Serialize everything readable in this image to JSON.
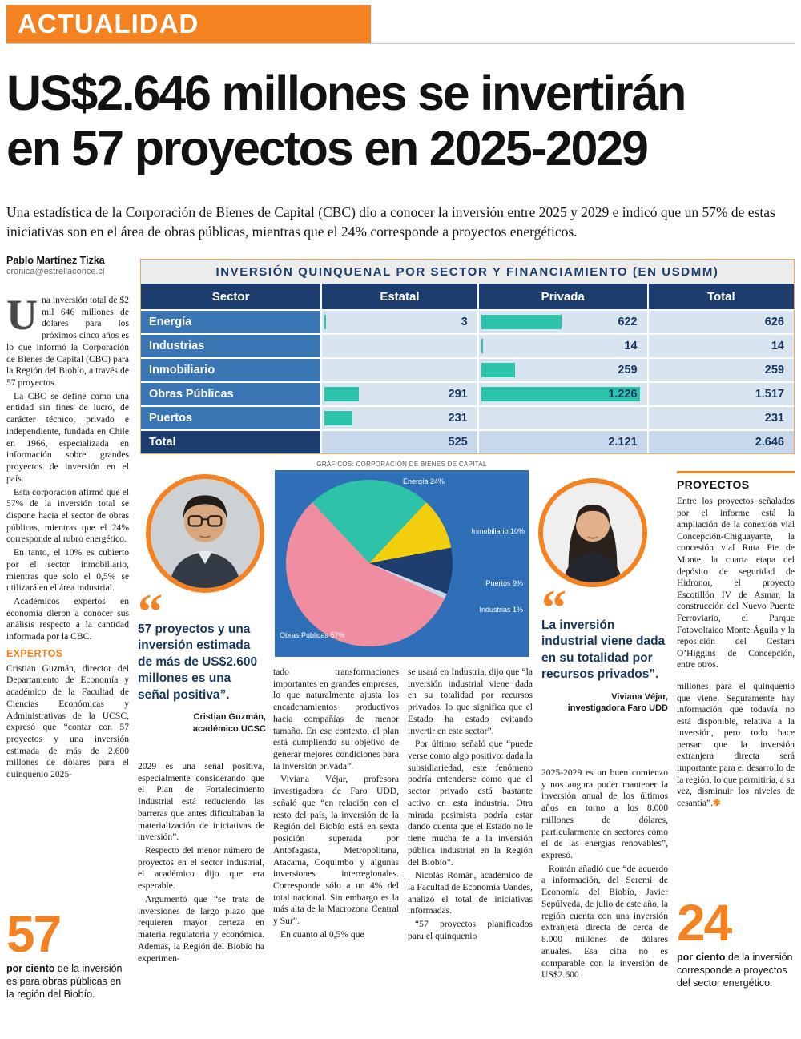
{
  "masthead": {
    "section": "ACTUALIDAD"
  },
  "article": {
    "headline_line1": "US$2.646 millones se invertirán",
    "headline_line2": "en 57 proyectos en 2025-2029",
    "deck": "Una estadística de la Corporación de Bienes de Capital (CBC) dio a conocer la inversión entre 2025 y 2029 e indicó que un 57% de estas iniciativas son en el área de obras públicas, mientras que el 24% corresponde a proyectos energéticos.",
    "byline_author": "Pablo Martínez Tizka",
    "byline_email": "cronica@estrellaconce.cl",
    "dropcap": "U",
    "col1": {
      "p1": "na inversión total de $2 mil 646 millones de dólares para los próximos cinco años es lo que informó la Corporación de Bienes de Capital (CBC) para la Región del Biobío, a través de 57 proyectos.",
      "p2": "La CBC se define como una entidad sin fines de lucro, de carácter técnico, privado e independiente, fundada en Chile en 1966, especializada en información sobre grandes proyectos de inversión en el país.",
      "p3": "Esta corporación afirmó que el 57% de la inversión total se dispone hacia el sector de obras públicas, mientras que el 24% corresponde al rubro energético.",
      "p4": "En tanto, el 10% es cubierto por el sector inmobiliario, mientras que solo el 0,5% se utilizará en el área industrial.",
      "p5": "Académicos expertos en economía dieron a conocer sus análisis respecto a la cantidad informada por la CBC.",
      "heading": "EXPERTOS",
      "p6": "Cristian Guzmán, director del Departamento de Economía y académico de la Facultad de Ciencias Económicas y Administrativas de la UCSC, expresó que “contar con 57 proyectos y una inversión estimada de más de 2.600 millones de dólares para el quinquenio 2025-"
    },
    "col2": {
      "p1": "2029 es una señal positiva, especialmente considerando que el Plan de Fortalecimiento Industrial está reduciendo las barreras que antes dificultaban la materialización de iniciativas de inversión”.",
      "p2": "Respecto del menor número de proyectos en el sector industrial, el académico dijo que era esperable.",
      "p3": "Argumentó que “se trata de inversiones de largo plazo que requieren mayor certeza en materia regulatoria y económica. Además, la Región del Biobío ha experimen-"
    },
    "col3": {
      "p1": "tado transformaciones importantes en grandes empresas, lo que naturalmente ajusta los encadenamientos productivos hacia compañías de menor tamaño. En ese contexto, el plan está cumpliendo su objetivo de generar mejores condiciones para la inversión privada”.",
      "p2": "Viviana Véjar, profesora investigadora de Faro UDD, señaló que “en relación con el resto del país, la inversión de la Región del Biobío está en sexta posición superada por Antofagasta, Metropolitana, Atacama, Coquimbo y algunas inversiones interregionales. Corresponde sólo a un 4% del total nacional. Sin embargo es la más alta de la Macrozona Central y Sur”.",
      "p3": "En cuanto al 0,5% que"
    },
    "col4": {
      "p1": "se usará en Industria, dijo que “la inversión industrial viene dada en su totalidad por recursos privados, lo que significa que el Estado ha estado evitando invertir en este sector”.",
      "p2": "Por último, señaló que “puede verse como algo positivo: dada la subsidiariedad, este fenómeno podría entenderse como que el sector privado está bastante activo en esta industria. Otra mirada pesimista podría estar dando cuenta que el Estado no le tiene mucha fe a la inversión pública industrial en la Región del Biobío”.",
      "p3": "Nicolás Román, académico de la Facultad de Economía Uandes, analizó el total de iniciativas informadas.",
      "p4": "“57 proyectos planificados para el quinquenio"
    },
    "col5": {
      "p1": "2025-2029 es un buen comienzo y nos augura poder mantener la inversión anual de los últimos años en torno a los 8.000 millones de dólares, particularmente en sectores como el de las energías renovables”, expresó.",
      "p2": "Román añadió que “de acuerdo a información, del Seremi de Economía del Biobío, Javier Sepúlveda, de julio de este año, la región cuenta con una inversión extranjera directa de cerca de 8.000 millones de dólares anuales. Esa cifra no es comparable con la inversión de US$2.600"
    }
  },
  "table": {
    "title": "INVERSIÓN QUINQUENAL POR SECTOR Y FINANCIAMIENTO (EN USDMM)",
    "columns": [
      "Sector",
      "Estatal",
      "Privada",
      "Total"
    ],
    "bar_max": 1300,
    "credit": "GRÁFICOS: CORPORACIÓN DE BIENES DE CAPITAL",
    "rows": [
      {
        "sector": "Energía",
        "estatal": "3",
        "estatal_v": 3,
        "privada": "622",
        "privada_v": 622,
        "total": "626"
      },
      {
        "sector": "Industrias",
        "estatal": "",
        "estatal_v": 0,
        "privada": "14",
        "privada_v": 14,
        "total": "14"
      },
      {
        "sector": "Inmobiliario",
        "estatal": "",
        "estatal_v": 0,
        "privada": "259",
        "privada_v": 259,
        "total": "259"
      },
      {
        "sector": "Obras Públicas",
        "estatal": "291",
        "estatal_v": 291,
        "privada": "1.226",
        "privada_v": 1226,
        "total": "1.517"
      },
      {
        "sector": "Puertos",
        "estatal": "231",
        "estatal_v": 231,
        "privada": "",
        "privada_v": 0,
        "total": "231"
      },
      {
        "sector": "Total",
        "estatal": "525",
        "estatal_v": 0,
        "privada": "2.121",
        "privada_v": 0,
        "total": "2.646"
      }
    ]
  },
  "chart_data": {
    "type": "pie",
    "title": "Inversión quinquenal por sector",
    "labels": [
      "Energía",
      "Inmobiliario",
      "Puertos",
      "Industrias",
      "Obras Públicas"
    ],
    "values": [
      24,
      10,
      9,
      1,
      57
    ],
    "label_texts": [
      "Energía 24%",
      "Inmobiliario 10%",
      "Puertos 9%",
      "Industrias 1%",
      "Obras Públicas 57%"
    ],
    "colors": [
      "#2CC3A9",
      "#F2CE0D",
      "#1E3E70",
      "#C9D4E4",
      "#F18DA0"
    ],
    "background": "#2E6FB7",
    "legend_position": "around"
  },
  "quotes": {
    "q1": {
      "mark": "“",
      "text": "57 proyectos y una inversión estimada de más de US$2.600 millones es una señal positiva”.",
      "name": "Cristian Guzmán,",
      "role": "académico UCSC"
    },
    "q2": {
      "mark": "“",
      "text": "La inversión industrial viene dada en su totalidad por recursos privados”.",
      "name": "Viviana Véjar,",
      "role": "investigadora Faro UDD"
    }
  },
  "sidebar": {
    "heading": "PROYECTOS",
    "body": "Entre los proyectos señalados por el informe está la ampliación de la conexión vial Concepción-Chiguayante, la concesión vial Ruta Pie de Monte, la cuarta etapa del depósito de seguridad de Hidronor, el proyecto Escotillón IV de Asmar, la construcción del Nuevo Puente Ferroviario, el Parque Fotovoltaico Monte Águila y la reposición del Cesfam O’Higgins de Concepción, entre otros.",
    "continuation": "millones para el quinquenio que viene. Seguramente hay información que todavía no está disponible, relativa a la inversión, pero todo hace pensar que la inversión extranjera directa será importante para el desarrollo de la región, lo que permitiría, a su vez, disminuir los niveles de cesantía”.",
    "end_mark": "✱"
  },
  "stats": {
    "stat57": {
      "value": "57",
      "bold": "por ciento",
      "text": " de la inversión es para obras públicas en la región del Biobío."
    },
    "stat24": {
      "value": "24",
      "bold": "por ciento",
      "text": " de la inversión corresponde a proyectos del sector energético."
    }
  }
}
